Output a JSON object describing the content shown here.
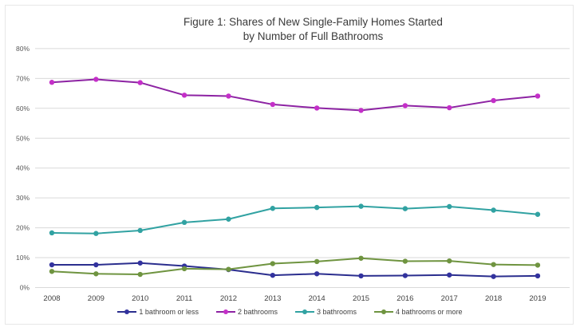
{
  "chart_data": {
    "type": "line",
    "title": "Figure 1: Shares of New Single-Family Homes Started by Number of Full Bathrooms",
    "title_line1": "Figure 1: Shares of New Single-Family Homes Started",
    "title_line2": "by Number of Full Bathrooms",
    "x": [
      2008,
      2009,
      2010,
      2011,
      2012,
      2013,
      2014,
      2015,
      2016,
      2017,
      2018,
      2019
    ],
    "xlabel": "",
    "ylabel": "",
    "ylim": [
      0,
      80
    ],
    "y_tick_step": 10,
    "y_ticks": [
      "0%",
      "10%",
      "20%",
      "30%",
      "40%",
      "50%",
      "60%",
      "70%",
      "80%"
    ],
    "grid": "horizontal",
    "legend_position": "bottom",
    "colors": {
      "gridline": "#d9d9d9",
      "axis_text": "#595959",
      "x_axis_text": "#404040",
      "title_text": "#3a3a3a"
    },
    "series": [
      {
        "name": "1 bathroom or less",
        "color": "#2b2e8e",
        "marker_color": "#32329e",
        "values": [
          7.6,
          7.6,
          8.2,
          7.2,
          6.0,
          4.1,
          4.6,
          3.9,
          4.0,
          4.2,
          3.7,
          3.9
        ]
      },
      {
        "name": "2 bathrooms",
        "color": "#8d23a3",
        "marker_color": "#c42fc8",
        "values": [
          68.7,
          69.7,
          68.6,
          64.4,
          64.1,
          61.3,
          60.1,
          59.3,
          60.9,
          60.2,
          62.6,
          64.1
        ]
      },
      {
        "name": "3 bathrooms",
        "color": "#31a2a2",
        "marker_color": "#31a2a2",
        "values": [
          18.3,
          18.1,
          19.1,
          21.8,
          22.9,
          26.5,
          26.8,
          27.2,
          26.4,
          27.1,
          25.9,
          24.5
        ]
      },
      {
        "name": "4 bathrooms or more",
        "color": "#6f9440",
        "marker_color": "#6f9440",
        "values": [
          5.4,
          4.6,
          4.4,
          6.3,
          6.1,
          8.0,
          8.7,
          9.8,
          8.8,
          8.9,
          7.7,
          7.5
        ]
      }
    ]
  }
}
